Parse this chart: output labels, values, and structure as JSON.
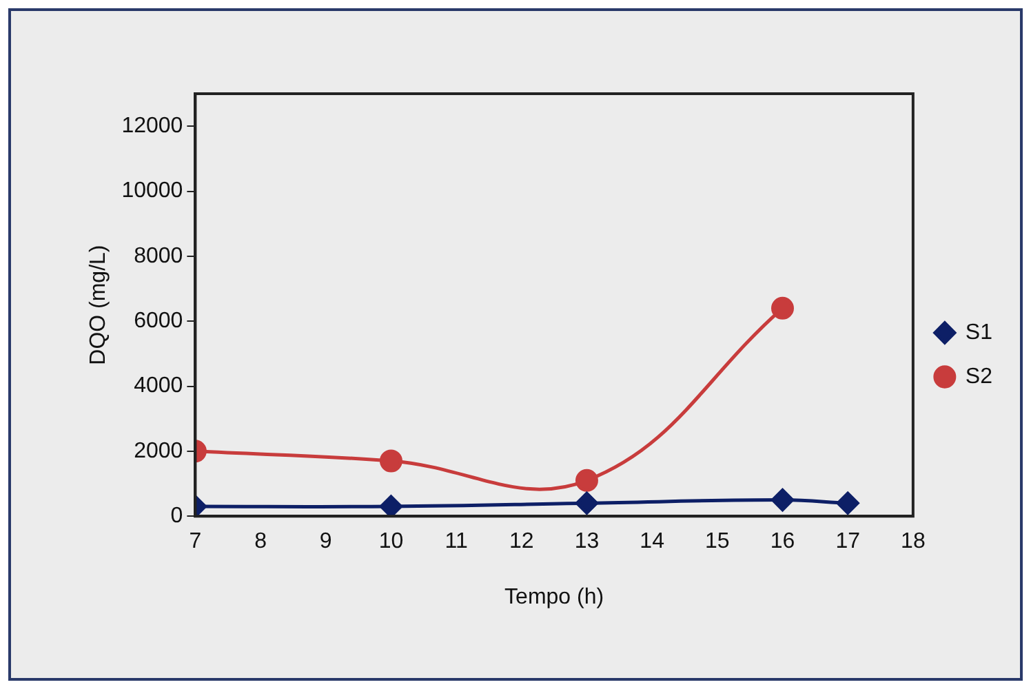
{
  "chart_data": {
    "type": "line",
    "xlabel": "Tempo (h)",
    "ylabel": "DQO (mg/L)",
    "xlim": [
      7,
      18
    ],
    "xticks": [
      7,
      8,
      9,
      10,
      11,
      12,
      13,
      14,
      15,
      16,
      17,
      18
    ],
    "ylim": [
      0,
      13000
    ],
    "yticks": [
      0,
      2000,
      4000,
      6000,
      8000,
      10000,
      12000
    ],
    "series": [
      {
        "name": "S1",
        "color": "#0d1f66",
        "marker": "diamond",
        "x": [
          7,
          10,
          13,
          16,
          17
        ],
        "values": [
          300,
          300,
          400,
          500,
          400
        ]
      },
      {
        "name": "S2",
        "color": "#c83c3c",
        "marker": "circle",
        "x": [
          7,
          10,
          13,
          16
        ],
        "values": [
          2000,
          1700,
          1100,
          6400
        ]
      }
    ],
    "grid": false,
    "legend": "right"
  }
}
